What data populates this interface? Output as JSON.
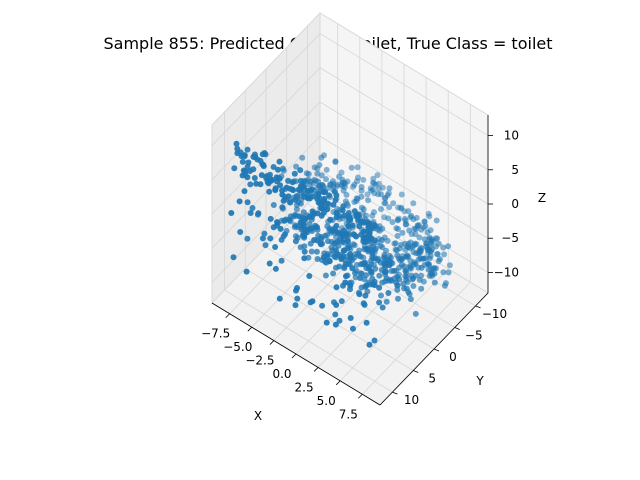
{
  "chart_data": {
    "type": "scatter",
    "title": "Sample 855: Predicted Class = toilet, True Class = toilet",
    "xlabel": "X",
    "ylabel": "Y",
    "zlabel": "Z",
    "xlim": [
      -9.5,
      9.5
    ],
    "ylim": [
      -13,
      13
    ],
    "zlim": [
      -13,
      13
    ],
    "x_ticks": [
      "−7.5",
      "−5.0",
      "−2.5",
      "0.0",
      "2.5",
      "5.0",
      "7.5"
    ],
    "y_ticks": [
      "−10",
      "−5",
      "0",
      "5",
      "10"
    ],
    "z_ticks": [
      "−10",
      "−5",
      "0",
      "5",
      "10"
    ],
    "grid": true,
    "marker_color": "#1f77b4",
    "pane_color": "#f2f2f2",
    "num_points": 850,
    "point_cloud": {
      "bowl_rim": {
        "center": [
          0,
          -3,
          -6
        ],
        "radius_x": 8,
        "radius_y": 7,
        "count": 420
      },
      "bowl_body": {
        "center": [
          0,
          -4,
          -10
        ],
        "radius_x": 5,
        "radius_y": 4,
        "count": 150
      },
      "tank": {
        "x_range": [
          -8,
          8
        ],
        "y": 11,
        "z_range": [
          -8,
          11
        ],
        "count": 220
      },
      "seat_back": {
        "x_range": [
          -8,
          8
        ],
        "y_range": [
          3,
          10
        ],
        "z": -2,
        "count": 60
      }
    }
  }
}
